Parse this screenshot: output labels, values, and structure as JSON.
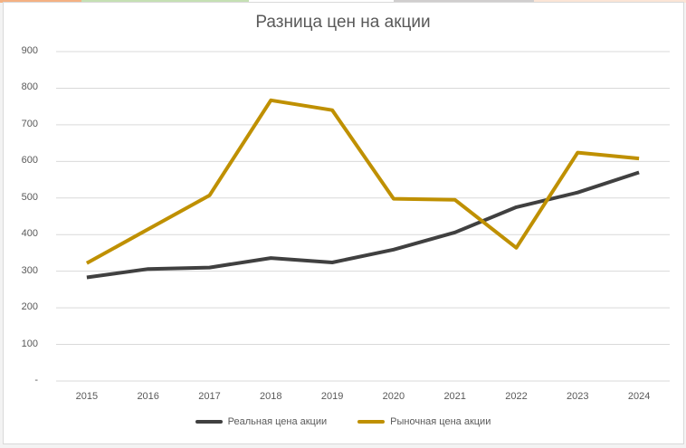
{
  "chart_data": {
    "type": "line",
    "title": "Разница цен на акции",
    "xlabel": "",
    "ylabel": "",
    "categories": [
      "2015",
      "2016",
      "2017",
      "2018",
      "2019",
      "2020",
      "2021",
      "2022",
      "2023",
      "2024"
    ],
    "series": [
      {
        "name": "Реальная цена акции",
        "color": "#404040",
        "values": [
          283,
          306,
          310,
          336,
          324,
          359,
          406,
          475,
          515,
          570
        ]
      },
      {
        "name": "Рыночная цена акции",
        "color": "#BF9000",
        "values": [
          322,
          415,
          507,
          767,
          740,
          498,
          495,
          364,
          624,
          608
        ]
      }
    ],
    "ylim": [
      0,
      900
    ],
    "yticks": [
      "-",
      "100",
      "200",
      "300",
      "400",
      "500",
      "600",
      "700",
      "800",
      "900"
    ],
    "grid": true,
    "legend_position": "bottom"
  }
}
